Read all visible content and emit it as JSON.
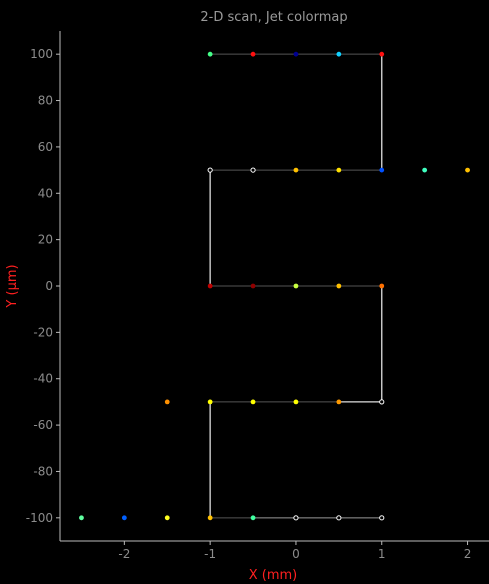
{
  "chart_data": {
    "type": "scatter",
    "title": "2-D scan, Jet colormap",
    "xlabel": "X (mm)",
    "ylabel": "Y (µm)",
    "xlim": [
      -2.75,
      2.25
    ],
    "ylim": [
      -110,
      110
    ],
    "xticks": [
      -2,
      -1,
      0,
      1,
      2
    ],
    "yticks": [
      -100,
      -80,
      -60,
      -40,
      -20,
      0,
      20,
      40,
      60,
      80,
      100
    ],
    "grid": false,
    "scan_path": [
      {
        "x": 1,
        "y": -100
      },
      {
        "x": 0.5,
        "y": -100
      },
      {
        "x": 0,
        "y": -100
      },
      {
        "x": -0.5,
        "y": -100
      },
      {
        "x": -1,
        "y": -100
      },
      {
        "x": -1,
        "y": -50
      },
      {
        "x": -0.5,
        "y": -50
      },
      {
        "x": 0,
        "y": -50
      },
      {
        "x": 0.5,
        "y": -50
      },
      {
        "x": 1,
        "y": -50
      },
      {
        "x": 1,
        "y": 0
      },
      {
        "x": 0.5,
        "y": 0
      },
      {
        "x": 0,
        "y": 0
      },
      {
        "x": -0.5,
        "y": 0
      },
      {
        "x": -1,
        "y": 0
      },
      {
        "x": -1,
        "y": 50
      },
      {
        "x": -0.5,
        "y": 50
      },
      {
        "x": 0,
        "y": 50
      },
      {
        "x": 0.5,
        "y": 50
      },
      {
        "x": 1,
        "y": 50
      },
      {
        "x": 1,
        "y": 100
      },
      {
        "x": 0.5,
        "y": 100
      },
      {
        "x": 0,
        "y": 100
      },
      {
        "x": -0.5,
        "y": 100
      },
      {
        "x": -1,
        "y": 100
      }
    ],
    "points": [
      {
        "x": -1,
        "y": 100,
        "color": "#44ff88"
      },
      {
        "x": -0.5,
        "y": 100,
        "color": "#ff1010"
      },
      {
        "x": 0,
        "y": 100,
        "color": "#000090"
      },
      {
        "x": 0.5,
        "y": 100,
        "color": "#10d0ff"
      },
      {
        "x": 1,
        "y": 100,
        "color": "#ff1010"
      },
      {
        "x": -1,
        "y": 50,
        "color": "#ffffff"
      },
      {
        "x": -0.5,
        "y": 50,
        "color": "#ffffff"
      },
      {
        "x": 0,
        "y": 50,
        "color": "#ffc000"
      },
      {
        "x": 0.5,
        "y": 50,
        "color": "#ffe000"
      },
      {
        "x": 1,
        "y": 50,
        "color": "#0050ff"
      },
      {
        "x": 1.5,
        "y": 50,
        "color": "#40ffc0"
      },
      {
        "x": 2,
        "y": 50,
        "color": "#ffc000"
      },
      {
        "x": -1,
        "y": 0,
        "color": "#c00000"
      },
      {
        "x": -0.5,
        "y": 0,
        "color": "#900000"
      },
      {
        "x": 0,
        "y": 0,
        "color": "#c8ff40"
      },
      {
        "x": 0.5,
        "y": 0,
        "color": "#ffc000"
      },
      {
        "x": 1,
        "y": 0,
        "color": "#ff7000"
      },
      {
        "x": -1.5,
        "y": -50,
        "color": "#ff9000"
      },
      {
        "x": -1,
        "y": -50,
        "color": "#ffff00"
      },
      {
        "x": -0.5,
        "y": -50,
        "color": "#ffff00"
      },
      {
        "x": 0,
        "y": -50,
        "color": "#ffff00"
      },
      {
        "x": 0.5,
        "y": -50,
        "color": "#ff9a00"
      },
      {
        "x": 1,
        "y": -50,
        "color": "#ffffff"
      },
      {
        "x": -2.5,
        "y": -100,
        "color": "#60ffa0"
      },
      {
        "x": -2,
        "y": -100,
        "color": "#0060ff"
      },
      {
        "x": -1.5,
        "y": -100,
        "color": "#ffff20"
      },
      {
        "x": -1,
        "y": -100,
        "color": "#ffc000"
      },
      {
        "x": -0.5,
        "y": -100,
        "color": "#40ffa0"
      },
      {
        "x": 0,
        "y": -100,
        "color": "#ffffff"
      },
      {
        "x": 0.5,
        "y": -100,
        "color": "#ffffff"
      },
      {
        "x": 1,
        "y": -100,
        "color": "#ffffff"
      }
    ],
    "colors": {
      "background": "#000000",
      "axis": "#bbbbbb",
      "tick_label": "#8c8c8c",
      "title": "#9a9a9a",
      "axis_label": "#ff2020",
      "path_vertical": "#d0d0d0",
      "path_horizontal": "#555555",
      "path_horizontal_highlight": "#e0e0e0"
    }
  }
}
